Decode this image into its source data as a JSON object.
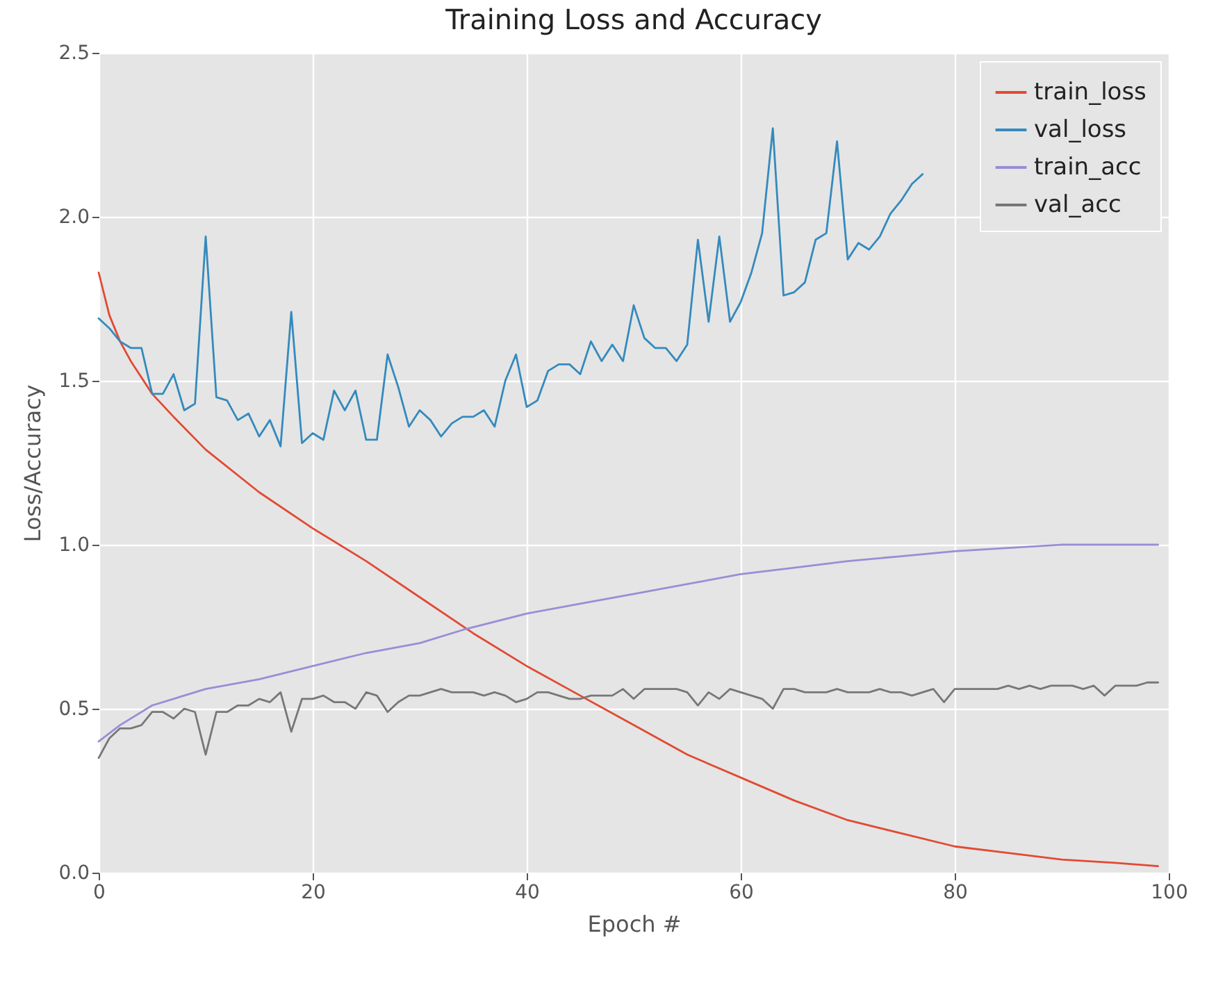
{
  "chart_data": {
    "type": "line",
    "title": "Training Loss and Accuracy",
    "xlabel": "Epoch #",
    "ylabel": "Loss/Accuracy",
    "xlim": [
      0,
      100
    ],
    "xticks": [
      0,
      20,
      40,
      60,
      80,
      100
    ],
    "ylim": [
      0,
      2.5
    ],
    "yticks": [
      {
        "value": 0,
        "label": "0.0"
      },
      {
        "value": 0.5,
        "label": "0.5"
      },
      {
        "value": 1,
        "label": "1.0"
      },
      {
        "value": 1.5,
        "label": "1.5"
      },
      {
        "value": 2,
        "label": "2.0"
      },
      {
        "value": 2.5,
        "label": "2.5"
      }
    ],
    "grid": true,
    "legend": "top right",
    "series": [
      {
        "name": "train_loss",
        "color": "#e24a33",
        "x": [
          0,
          1,
          2,
          3,
          5,
          7,
          10,
          15,
          20,
          25,
          30,
          35,
          40,
          45,
          50,
          55,
          60,
          65,
          70,
          75,
          80,
          85,
          90,
          95,
          99
        ],
        "values": [
          1.83,
          1.7,
          1.62,
          1.56,
          1.46,
          1.39,
          1.29,
          1.16,
          1.05,
          0.95,
          0.84,
          0.73,
          0.63,
          0.54,
          0.45,
          0.36,
          0.29,
          0.22,
          0.16,
          0.12,
          0.08,
          0.06,
          0.04,
          0.03,
          0.02
        ]
      },
      {
        "name": "val_loss",
        "color": "#348abd",
        "x": [
          0,
          1,
          2,
          3,
          4,
          5,
          6,
          7,
          8,
          9,
          10,
          11,
          12,
          13,
          14,
          15,
          16,
          17,
          18,
          19,
          20,
          21,
          22,
          23,
          24,
          25,
          26,
          27,
          28,
          29,
          30,
          31,
          32,
          33,
          34,
          35,
          36,
          37,
          38,
          39,
          40,
          41,
          42,
          43,
          44,
          45,
          46,
          47,
          48,
          49,
          50,
          51,
          52,
          53,
          54,
          55,
          56,
          57,
          58,
          59,
          60,
          61,
          62,
          63,
          64,
          65,
          66,
          67,
          68,
          69,
          70,
          71,
          72,
          73,
          74,
          75,
          76,
          77
        ],
        "values": [
          1.69,
          1.66,
          1.62,
          1.6,
          1.6,
          1.46,
          1.46,
          1.52,
          1.41,
          1.43,
          1.94,
          1.45,
          1.44,
          1.38,
          1.4,
          1.33,
          1.38,
          1.3,
          1.71,
          1.31,
          1.34,
          1.32,
          1.47,
          1.41,
          1.47,
          1.32,
          1.32,
          1.58,
          1.48,
          1.36,
          1.41,
          1.38,
          1.33,
          1.37,
          1.39,
          1.39,
          1.41,
          1.36,
          1.5,
          1.58,
          1.42,
          1.44,
          1.53,
          1.55,
          1.55,
          1.52,
          1.62,
          1.56,
          1.61,
          1.56,
          1.73,
          1.63,
          1.6,
          1.6,
          1.56,
          1.61,
          1.93,
          1.68,
          1.94,
          1.68,
          1.74,
          1.83,
          1.95,
          2.27,
          1.76,
          1.77,
          1.8,
          1.93,
          1.95,
          2.23,
          1.87,
          1.92,
          1.9,
          1.94,
          2.01,
          2.05,
          2.1,
          2.13
        ]
      },
      {
        "name": "train_acc",
        "color": "#988ed5",
        "x": [
          0,
          2,
          5,
          10,
          15,
          20,
          25,
          30,
          34,
          40,
          45,
          50,
          55,
          60,
          65,
          70,
          75,
          80,
          85,
          90,
          95,
          99
        ],
        "values": [
          0.4,
          0.45,
          0.51,
          0.56,
          0.59,
          0.63,
          0.67,
          0.7,
          0.74,
          0.79,
          0.82,
          0.85,
          0.88,
          0.91,
          0.93,
          0.95,
          0.965,
          0.98,
          0.99,
          1.0,
          1.0,
          1.0
        ]
      },
      {
        "name": "val_acc",
        "color": "#777777",
        "x": [
          0,
          1,
          2,
          3,
          4,
          5,
          6,
          7,
          8,
          9,
          10,
          11,
          12,
          13,
          14,
          15,
          16,
          17,
          18,
          19,
          20,
          21,
          22,
          23,
          24,
          25,
          26,
          27,
          28,
          29,
          30,
          31,
          32,
          33,
          34,
          35,
          36,
          37,
          38,
          39,
          40,
          41,
          42,
          43,
          44,
          45,
          46,
          47,
          48,
          49,
          50,
          51,
          52,
          53,
          54,
          55,
          56,
          57,
          58,
          59,
          60,
          61,
          62,
          63,
          64,
          65,
          66,
          67,
          68,
          69,
          70,
          71,
          72,
          73,
          74,
          75,
          76,
          77,
          78,
          79,
          80,
          81,
          82,
          83,
          84,
          85,
          86,
          87,
          88,
          89,
          90,
          91,
          92,
          93,
          94,
          95,
          96,
          97,
          98,
          99
        ],
        "values": [
          0.35,
          0.41,
          0.44,
          0.44,
          0.45,
          0.49,
          0.49,
          0.47,
          0.5,
          0.49,
          0.36,
          0.49,
          0.49,
          0.51,
          0.51,
          0.53,
          0.52,
          0.55,
          0.43,
          0.53,
          0.53,
          0.54,
          0.52,
          0.52,
          0.5,
          0.55,
          0.54,
          0.49,
          0.52,
          0.54,
          0.54,
          0.55,
          0.56,
          0.55,
          0.55,
          0.55,
          0.54,
          0.55,
          0.54,
          0.52,
          0.53,
          0.55,
          0.55,
          0.54,
          0.53,
          0.53,
          0.54,
          0.54,
          0.54,
          0.56,
          0.53,
          0.56,
          0.56,
          0.56,
          0.56,
          0.55,
          0.51,
          0.55,
          0.53,
          0.56,
          0.55,
          0.54,
          0.53,
          0.5,
          0.56,
          0.56,
          0.55,
          0.55,
          0.55,
          0.56,
          0.55,
          0.55,
          0.55,
          0.56,
          0.55,
          0.55,
          0.54,
          0.55,
          0.56,
          0.52,
          0.56,
          0.56,
          0.56,
          0.56,
          0.56,
          0.57,
          0.56,
          0.57,
          0.56,
          0.57,
          0.57,
          0.57,
          0.56,
          0.57,
          0.54,
          0.57,
          0.57,
          0.57,
          0.58,
          0.58
        ]
      }
    ]
  }
}
